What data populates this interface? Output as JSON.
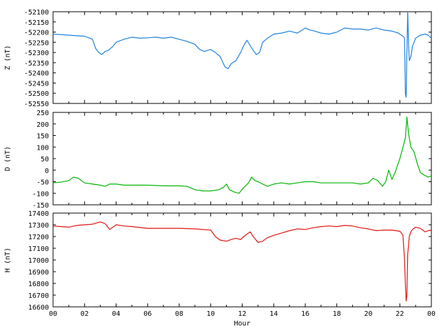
{
  "chart_data": [
    {
      "type": "line",
      "ylabel": "Z (nT)",
      "ylim": [
        -52550,
        -52100
      ],
      "yticks": [
        -52100,
        -52150,
        -52200,
        -52250,
        -52300,
        -52350,
        -52400,
        -52450,
        -52500,
        -52550
      ],
      "grid": false,
      "series": [
        {
          "color": "#1e7fe0",
          "x": [
            0,
            0.5,
            1,
            1.5,
            2,
            2.5,
            2.7,
            2.9,
            3.1,
            3.3,
            3.5,
            3.8,
            4,
            4.5,
            5,
            5.5,
            6,
            6.5,
            7,
            7.5,
            8,
            8.5,
            9,
            9.3,
            9.6,
            10,
            10.3,
            10.6,
            10.9,
            11.1,
            11.3,
            11.6,
            11.9,
            12.1,
            12.3,
            12.5,
            12.7,
            12.9,
            13.1,
            13.3,
            13.6,
            14,
            14.5,
            15,
            15.5,
            16,
            16.3,
            16.6,
            17,
            17.5,
            18,
            18.5,
            19,
            19.5,
            20,
            20.5,
            21,
            21.5,
            21.9,
            22.2,
            22.3,
            22.35,
            22.4,
            22.45,
            22.5,
            22.55,
            22.6,
            22.7,
            22.8,
            23,
            23.3,
            23.6,
            23.8,
            24
          ],
          "y": [
            -52210,
            -52212,
            -52215,
            -52218,
            -52220,
            -52235,
            -52280,
            -52300,
            -52310,
            -52295,
            -52290,
            -52270,
            -52250,
            -52235,
            -52225,
            -52230,
            -52228,
            -52225,
            -52230,
            -52225,
            -52235,
            -52245,
            -52260,
            -52285,
            -52295,
            -52285,
            -52300,
            -52320,
            -52370,
            -52380,
            -52355,
            -52340,
            -52300,
            -52265,
            -52240,
            -52265,
            -52290,
            -52310,
            -52300,
            -52250,
            -52230,
            -52210,
            -52205,
            -52195,
            -52205,
            -52180,
            -52190,
            -52195,
            -52205,
            -52210,
            -52200,
            -52180,
            -52185,
            -52185,
            -52190,
            -52180,
            -52190,
            -52195,
            -52205,
            -52220,
            -52230,
            -52500,
            -52520,
            -52300,
            -52100,
            -52250,
            -52340,
            -52320,
            -52270,
            -52230,
            -52215,
            -52210,
            -52215,
            -52230
          ]
        }
      ]
    },
    {
      "type": "line",
      "ylabel": "D (nT)",
      "ylim": [
        -150,
        250
      ],
      "yticks": [
        250,
        200,
        150,
        100,
        50,
        0,
        -50,
        -100,
        -150
      ],
      "grid": false,
      "series": [
        {
          "color": "#00b400",
          "x": [
            0,
            0.5,
            1,
            1.3,
            1.6,
            2,
            2.5,
            3,
            3.3,
            3.6,
            4,
            4.5,
            5,
            6,
            7,
            8,
            8.5,
            9,
            9.5,
            10,
            10.5,
            10.8,
            11,
            11.2,
            11.5,
            11.8,
            12.1,
            12.4,
            12.6,
            12.8,
            13,
            13.3,
            13.6,
            14,
            14.5,
            15,
            15.5,
            16,
            16.5,
            17,
            17.5,
            18,
            18.5,
            19,
            19.5,
            20,
            20.3,
            20.6,
            20.9,
            21.1,
            21.3,
            21.5,
            21.7,
            22,
            22.2,
            22.35,
            22.45,
            22.55,
            22.7,
            22.9,
            23.1,
            23.3,
            23.5,
            23.8,
            24
          ],
          "y": [
            -55,
            -52,
            -45,
            -30,
            -35,
            -55,
            -60,
            -65,
            -70,
            -60,
            -60,
            -65,
            -65,
            -65,
            -68,
            -68,
            -70,
            -85,
            -90,
            -90,
            -85,
            -75,
            -60,
            -85,
            -95,
            -100,
            -75,
            -55,
            -30,
            -45,
            -50,
            -60,
            -70,
            -60,
            -55,
            -60,
            -55,
            -50,
            -50,
            -55,
            -55,
            -55,
            -55,
            -55,
            -60,
            -55,
            -35,
            -45,
            -70,
            -50,
            0,
            -40,
            -10,
            50,
            100,
            140,
            230,
            160,
            100,
            80,
            30,
            -10,
            -20,
            -30,
            -25
          ]
        }
      ]
    },
    {
      "type": "line",
      "ylabel": "H (nT)",
      "ylim": [
        16600,
        17400
      ],
      "yticks": [
        17400,
        17300,
        17200,
        17100,
        17000,
        16900,
        16800,
        16700,
        16600
      ],
      "xlabel": "Hour",
      "xticks": [
        "00",
        "02",
        "04",
        "06",
        "08",
        "10",
        "12",
        "14",
        "16",
        "18",
        "20",
        "22",
        "00"
      ],
      "grid": false,
      "series": [
        {
          "color": "#e01010",
          "x": [
            0,
            0.5,
            1,
            1.5,
            2,
            2.5,
            3,
            3.3,
            3.6,
            4,
            4.5,
            5,
            6,
            7,
            8,
            9,
            9.5,
            10,
            10.3,
            10.6,
            11,
            11.3,
            11.6,
            11.9,
            12.1,
            12.3,
            12.5,
            12.7,
            13,
            13.3,
            13.6,
            14,
            14.5,
            15,
            15.5,
            16,
            16.5,
            17,
            17.5,
            18,
            18.5,
            19,
            19.5,
            20,
            20.5,
            21,
            21.5,
            22,
            22.1,
            22.2,
            22.3,
            22.35,
            22.4,
            22.45,
            22.5,
            22.6,
            22.7,
            22.8,
            23,
            23.3,
            23.6,
            23.8,
            24
          ],
          "y": [
            17290,
            17285,
            17280,
            17295,
            17300,
            17305,
            17325,
            17310,
            17260,
            17300,
            17290,
            17285,
            17270,
            17270,
            17270,
            17265,
            17260,
            17255,
            17200,
            17170,
            17160,
            17175,
            17185,
            17175,
            17200,
            17220,
            17240,
            17200,
            17150,
            17160,
            17190,
            17210,
            17230,
            17250,
            17265,
            17260,
            17275,
            17285,
            17290,
            17285,
            17295,
            17290,
            17275,
            17265,
            17250,
            17255,
            17255,
            17245,
            17230,
            17210,
            17000,
            16800,
            16650,
            16700,
            17050,
            17200,
            17240,
            17260,
            17280,
            17270,
            17240,
            17250,
            17255
          ]
        }
      ]
    }
  ]
}
